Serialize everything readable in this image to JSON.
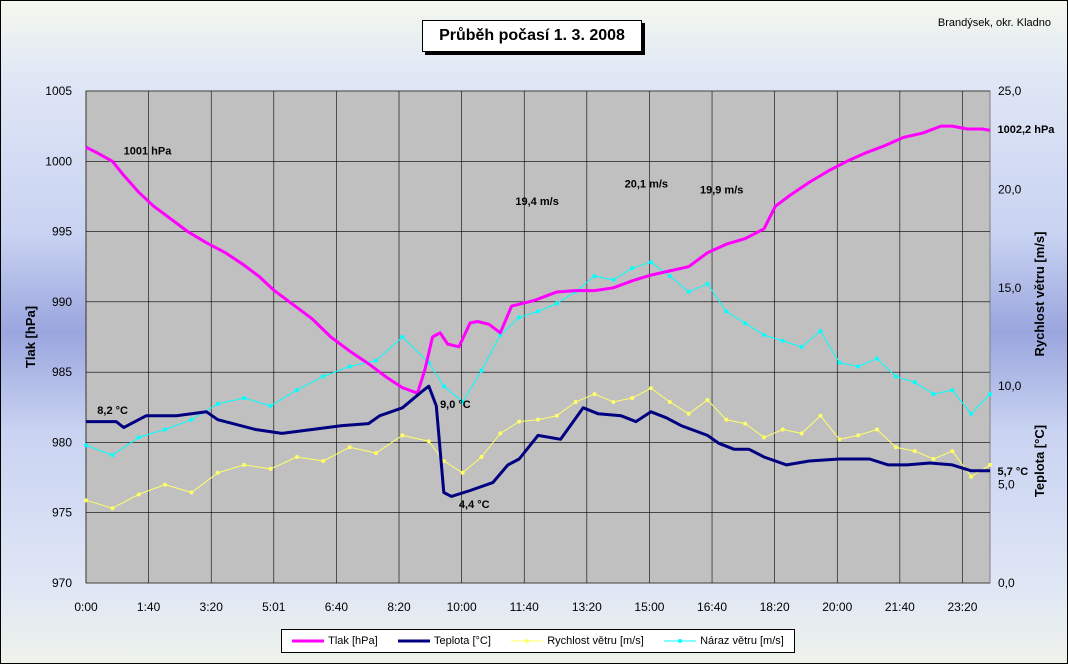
{
  "location": "Brandýsek, okr. Kladno",
  "chart_data": {
    "type": "line",
    "title": "Průběh počasí 1. 3. 2008",
    "xlabel": "",
    "ylabel_left": "Tlak [hPa]",
    "ylabel_right1": "Teplota [°C]",
    "ylabel_right2": "Rychlost větru [m/s]",
    "ylim_left": [
      970,
      1005
    ],
    "ylim_right": [
      0,
      25
    ],
    "yticks_left": [
      "970",
      "975",
      "980",
      "985",
      "990",
      "995",
      "1000",
      "1005"
    ],
    "yticks_right": [
      "0,0",
      "5,0",
      "10,0",
      "15,0",
      "20,0",
      "25,0"
    ],
    "xticks": [
      "0:00",
      "1:40",
      "3:20",
      "5:01",
      "6:40",
      "8:20",
      "10:00",
      "11:40",
      "13:20",
      "15:00",
      "16:40",
      "18:20",
      "20:00",
      "21:40",
      "23:20"
    ],
    "xlim_hours": [
      0,
      24
    ],
    "grid": true,
    "legend_position": "bottom",
    "series": [
      {
        "name": "Tlak [hPa]",
        "axis": "left",
        "color": "#ff00ff",
        "x": [
          0,
          0.3,
          0.7,
          1.0,
          1.4,
          1.8,
          2.2,
          2.7,
          3.2,
          3.7,
          4.2,
          4.6,
          5.0,
          5.5,
          6.0,
          6.5,
          7.0,
          7.5,
          8.0,
          8.4,
          8.8,
          9.0,
          9.2,
          9.4,
          9.6,
          9.9,
          10.2,
          10.4,
          10.7,
          11.0,
          11.3,
          11.6,
          11.9,
          12.2,
          12.5,
          13.0,
          13.5,
          14.0,
          14.5,
          15.0,
          15.5,
          16.0,
          16.5,
          17.0,
          17.5,
          18.0,
          18.3,
          18.7,
          19.2,
          19.7,
          20.2,
          20.7,
          21.2,
          21.7,
          22.2,
          22.7,
          23.0,
          23.4,
          23.8,
          24.0
        ],
        "values": [
          1001.0,
          1000.6,
          1000.0,
          999.0,
          997.8,
          996.8,
          996.0,
          995.0,
          994.2,
          993.5,
          992.6,
          991.8,
          990.8,
          989.8,
          988.8,
          987.5,
          986.5,
          985.6,
          984.6,
          983.9,
          983.5,
          985.2,
          987.5,
          987.8,
          987.0,
          986.8,
          988.5,
          988.6,
          988.4,
          987.8,
          989.7,
          989.9,
          990.1,
          990.4,
          990.7,
          990.8,
          990.8,
          991.0,
          991.5,
          991.9,
          992.2,
          992.5,
          993.5,
          994.1,
          994.5,
          995.2,
          996.8,
          997.6,
          998.5,
          999.3,
          1000.0,
          1000.6,
          1001.1,
          1001.7,
          1002.0,
          1002.5,
          1002.5,
          1002.3,
          1002.3,
          1002.2
        ]
      },
      {
        "name": "Teplota [°C]",
        "axis": "right",
        "color": "#000080",
        "x": [
          0,
          0.8,
          1.0,
          1.6,
          2.4,
          3.2,
          3.5,
          4.5,
          5.2,
          6.0,
          6.8,
          7.5,
          7.8,
          8.4,
          8.9,
          9.1,
          9.3,
          9.5,
          9.7,
          10.2,
          10.8,
          11.2,
          11.5,
          12.0,
          12.6,
          13.2,
          13.6,
          14.2,
          14.6,
          15.0,
          15.4,
          15.8,
          16.5,
          16.8,
          17.2,
          17.6,
          18.0,
          18.6,
          19.2,
          20.0,
          20.8,
          21.3,
          21.8,
          22.4,
          23.0,
          23.5,
          24.0
        ],
        "values": [
          8.2,
          8.2,
          7.9,
          8.5,
          8.5,
          8.7,
          8.3,
          7.8,
          7.6,
          7.8,
          8.0,
          8.1,
          8.5,
          8.9,
          9.7,
          10.0,
          9.0,
          4.6,
          4.4,
          4.7,
          5.1,
          6.0,
          6.3,
          7.5,
          7.3,
          8.9,
          8.6,
          8.5,
          8.2,
          8.7,
          8.4,
          8.0,
          7.5,
          7.1,
          6.8,
          6.8,
          6.4,
          6.0,
          6.2,
          6.3,
          6.3,
          6.0,
          6.0,
          6.1,
          6.0,
          5.7,
          5.7
        ]
      },
      {
        "name": "Rychlost větru [m/s]",
        "axis": "right",
        "color": "#ffff66",
        "x": [
          0,
          0.7,
          1.4,
          2.1,
          2.8,
          3.5,
          4.2,
          4.9,
          5.6,
          6.3,
          7.0,
          7.7,
          8.4,
          9.1,
          9.5,
          10.0,
          10.5,
          11.0,
          11.5,
          12.0,
          12.5,
          13.0,
          13.5,
          14.0,
          14.5,
          15.0,
          15.5,
          16.0,
          16.5,
          17.0,
          17.5,
          18.0,
          18.5,
          19.0,
          19.5,
          20.0,
          20.5,
          21.0,
          21.5,
          22.0,
          22.5,
          23.0,
          23.5,
          24.0
        ],
        "values": [
          4.2,
          3.8,
          4.5,
          5.0,
          4.6,
          5.6,
          6.0,
          5.8,
          6.4,
          6.2,
          6.9,
          6.6,
          7.5,
          7.2,
          6.2,
          5.6,
          6.4,
          7.6,
          8.2,
          8.3,
          8.5,
          9.2,
          9.6,
          9.2,
          9.4,
          9.9,
          9.2,
          8.6,
          9.3,
          8.3,
          8.1,
          7.4,
          7.8,
          7.6,
          8.5,
          7.3,
          7.5,
          7.8,
          6.9,
          6.7,
          6.3,
          6.7,
          5.4,
          6.0
        ]
      },
      {
        "name": "Náraz větru [m/s]",
        "axis": "right",
        "color": "#00ffff",
        "x": [
          0,
          0.7,
          1.4,
          2.1,
          2.8,
          3.5,
          4.2,
          4.9,
          5.6,
          6.3,
          7.0,
          7.7,
          8.4,
          9.1,
          9.5,
          10.0,
          10.5,
          11.0,
          11.5,
          12.0,
          12.5,
          13.0,
          13.5,
          14.0,
          14.5,
          15.0,
          15.5,
          16.0,
          16.5,
          17.0,
          17.5,
          18.0,
          18.5,
          19.0,
          19.5,
          20.0,
          20.5,
          21.0,
          21.5,
          22.0,
          22.5,
          23.0,
          23.5,
          24.0
        ],
        "values": [
          7.0,
          6.5,
          7.4,
          7.8,
          8.3,
          9.1,
          9.4,
          9.0,
          9.8,
          10.5,
          11.0,
          11.3,
          12.5,
          11.2,
          10.0,
          9.2,
          10.8,
          12.6,
          13.5,
          13.8,
          14.2,
          14.8,
          15.6,
          15.4,
          16.0,
          16.3,
          15.6,
          14.8,
          15.2,
          13.8,
          13.2,
          12.6,
          12.3,
          12.0,
          12.8,
          11.2,
          11.0,
          11.4,
          10.5,
          10.2,
          9.6,
          9.8,
          8.6,
          9.6
        ]
      }
    ],
    "annotations": [
      "1001 hPa",
      "1002,2 hPa",
      "8,2 °C",
      "9,0 °C",
      "4,4 °C",
      "5,7 °C",
      "19,4 m/s",
      "20,1 m/s",
      "19,9 m/s"
    ]
  }
}
